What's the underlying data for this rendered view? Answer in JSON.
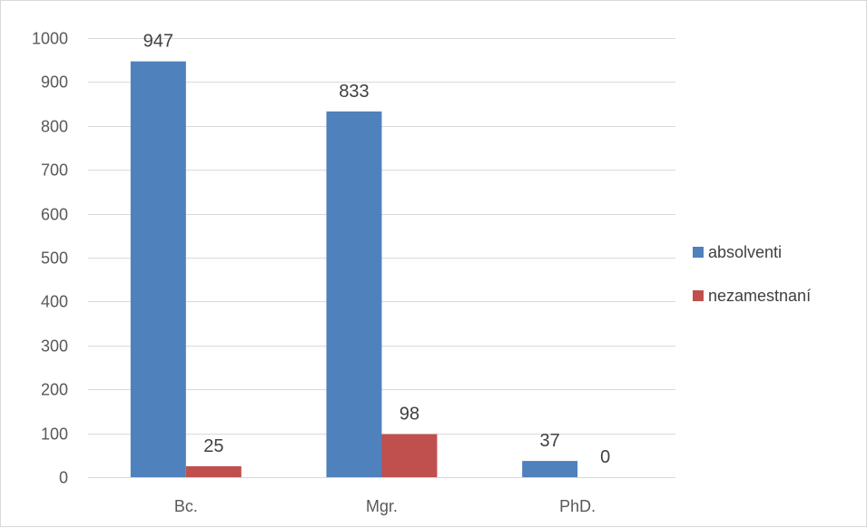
{
  "chart_data": {
    "type": "bar",
    "categories": [
      "Bc.",
      "Mgr.",
      "PhD."
    ],
    "series": [
      {
        "name": "absolventi",
        "values": [
          947,
          833,
          37
        ],
        "color": "#4f81bd"
      },
      {
        "name": "nezamestnaní",
        "values": [
          25,
          98,
          0
        ],
        "color": "#c0504d"
      }
    ],
    "ylim": [
      0,
      1000
    ],
    "yticks": [
      0,
      100,
      200,
      300,
      400,
      500,
      600,
      700,
      800,
      900,
      1000
    ],
    "grid": true,
    "legend_position": "right",
    "title": "",
    "xlabel": "",
    "ylabel": ""
  }
}
